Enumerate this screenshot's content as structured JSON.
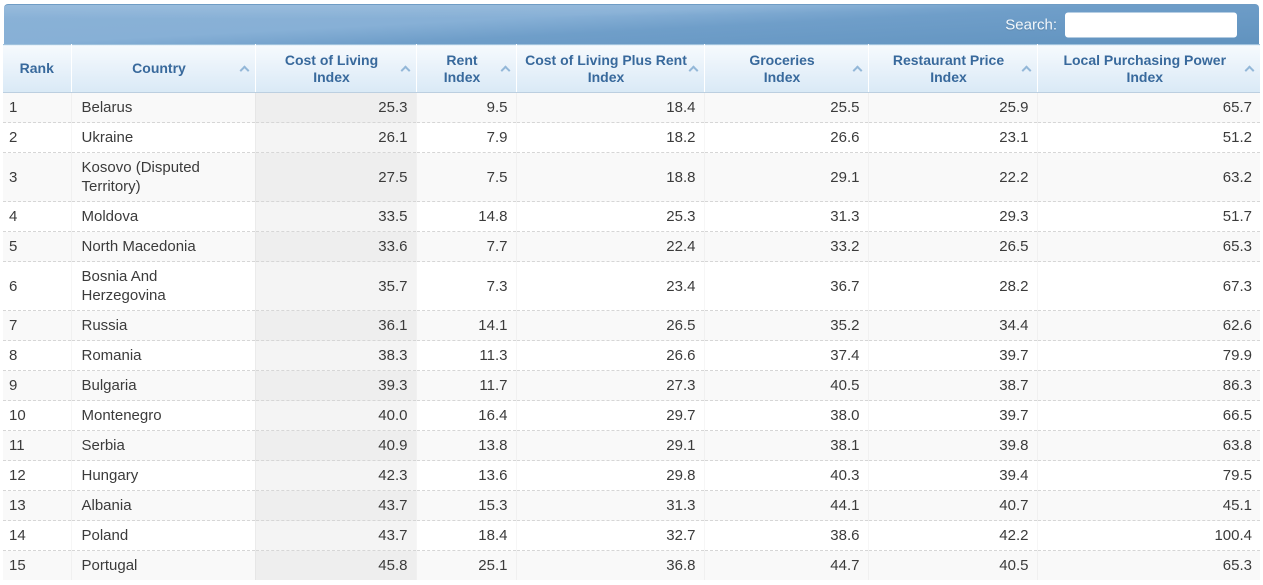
{
  "toolbar": {
    "search_label": "Search:",
    "search_value": ""
  },
  "colors": {
    "banner_blue_light": "#8ab2d7",
    "banner_blue_dark": "#6193bf",
    "header_text_blue": "#38699c",
    "header_bg_top": "#f6fafd",
    "header_bg_bottom": "#d9e9f6",
    "sort_caret_blue": "#93b7d8",
    "row_stripe_gray": "#f9f9f9",
    "sorted_column_shade": "rgba(0,0,0,0.04)",
    "body_text": "#3b3b3b"
  },
  "icons": {
    "sort_ascending": "chevron-up-icon"
  },
  "table": {
    "columns": [
      {
        "key": "rank",
        "label": "Rank",
        "sortable": false,
        "sorted": false,
        "align": "left"
      },
      {
        "key": "country",
        "label": "Country",
        "sortable": true,
        "sorted": false,
        "align": "left"
      },
      {
        "key": "cost_of_living",
        "label": "Cost of Living\nIndex",
        "sortable": true,
        "sorted": true,
        "align": "right"
      },
      {
        "key": "rent",
        "label": "Rent\nIndex",
        "sortable": true,
        "sorted": false,
        "align": "right"
      },
      {
        "key": "cost_of_living_plus_rent",
        "label": "Cost of Living Plus Rent\nIndex",
        "sortable": true,
        "sorted": false,
        "align": "right"
      },
      {
        "key": "groceries",
        "label": "Groceries\nIndex",
        "sortable": true,
        "sorted": false,
        "align": "right"
      },
      {
        "key": "restaurant_price",
        "label": "Restaurant Price\nIndex",
        "sortable": true,
        "sorted": false,
        "align": "right"
      },
      {
        "key": "local_purchasing_power",
        "label": "Local Purchasing Power\nIndex",
        "sortable": true,
        "sorted": false,
        "align": "right"
      }
    ],
    "rows": [
      [
        "1",
        "Belarus",
        "25.3",
        "9.5",
        "18.4",
        "25.5",
        "25.9",
        "65.7"
      ],
      [
        "2",
        "Ukraine",
        "26.1",
        "7.9",
        "18.2",
        "26.6",
        "23.1",
        "51.2"
      ],
      [
        "3",
        "Kosovo (Disputed Territory)",
        "27.5",
        "7.5",
        "18.8",
        "29.1",
        "22.2",
        "63.2"
      ],
      [
        "4",
        "Moldova",
        "33.5",
        "14.8",
        "25.3",
        "31.3",
        "29.3",
        "51.7"
      ],
      [
        "5",
        "North Macedonia",
        "33.6",
        "7.7",
        "22.4",
        "33.2",
        "26.5",
        "65.3"
      ],
      [
        "6",
        "Bosnia And Herzegovina",
        "35.7",
        "7.3",
        "23.4",
        "36.7",
        "28.2",
        "67.3"
      ],
      [
        "7",
        "Russia",
        "36.1",
        "14.1",
        "26.5",
        "35.2",
        "34.4",
        "62.6"
      ],
      [
        "8",
        "Romania",
        "38.3",
        "11.3",
        "26.6",
        "37.4",
        "39.7",
        "79.9"
      ],
      [
        "9",
        "Bulgaria",
        "39.3",
        "11.7",
        "27.3",
        "40.5",
        "38.7",
        "86.3"
      ],
      [
        "10",
        "Montenegro",
        "40.0",
        "16.4",
        "29.7",
        "38.0",
        "39.7",
        "66.5"
      ],
      [
        "11",
        "Serbia",
        "40.9",
        "13.8",
        "29.1",
        "38.1",
        "39.8",
        "63.8"
      ],
      [
        "12",
        "Hungary",
        "42.3",
        "13.6",
        "29.8",
        "40.3",
        "39.4",
        "79.5"
      ],
      [
        "13",
        "Albania",
        "43.7",
        "15.3",
        "31.3",
        "44.1",
        "40.7",
        "45.1"
      ],
      [
        "14",
        "Poland",
        "43.7",
        "18.4",
        "32.7",
        "38.6",
        "42.2",
        "100.4"
      ],
      [
        "15",
        "Portugal",
        "45.8",
        "25.1",
        "36.8",
        "44.7",
        "40.5",
        "65.3"
      ]
    ]
  }
}
